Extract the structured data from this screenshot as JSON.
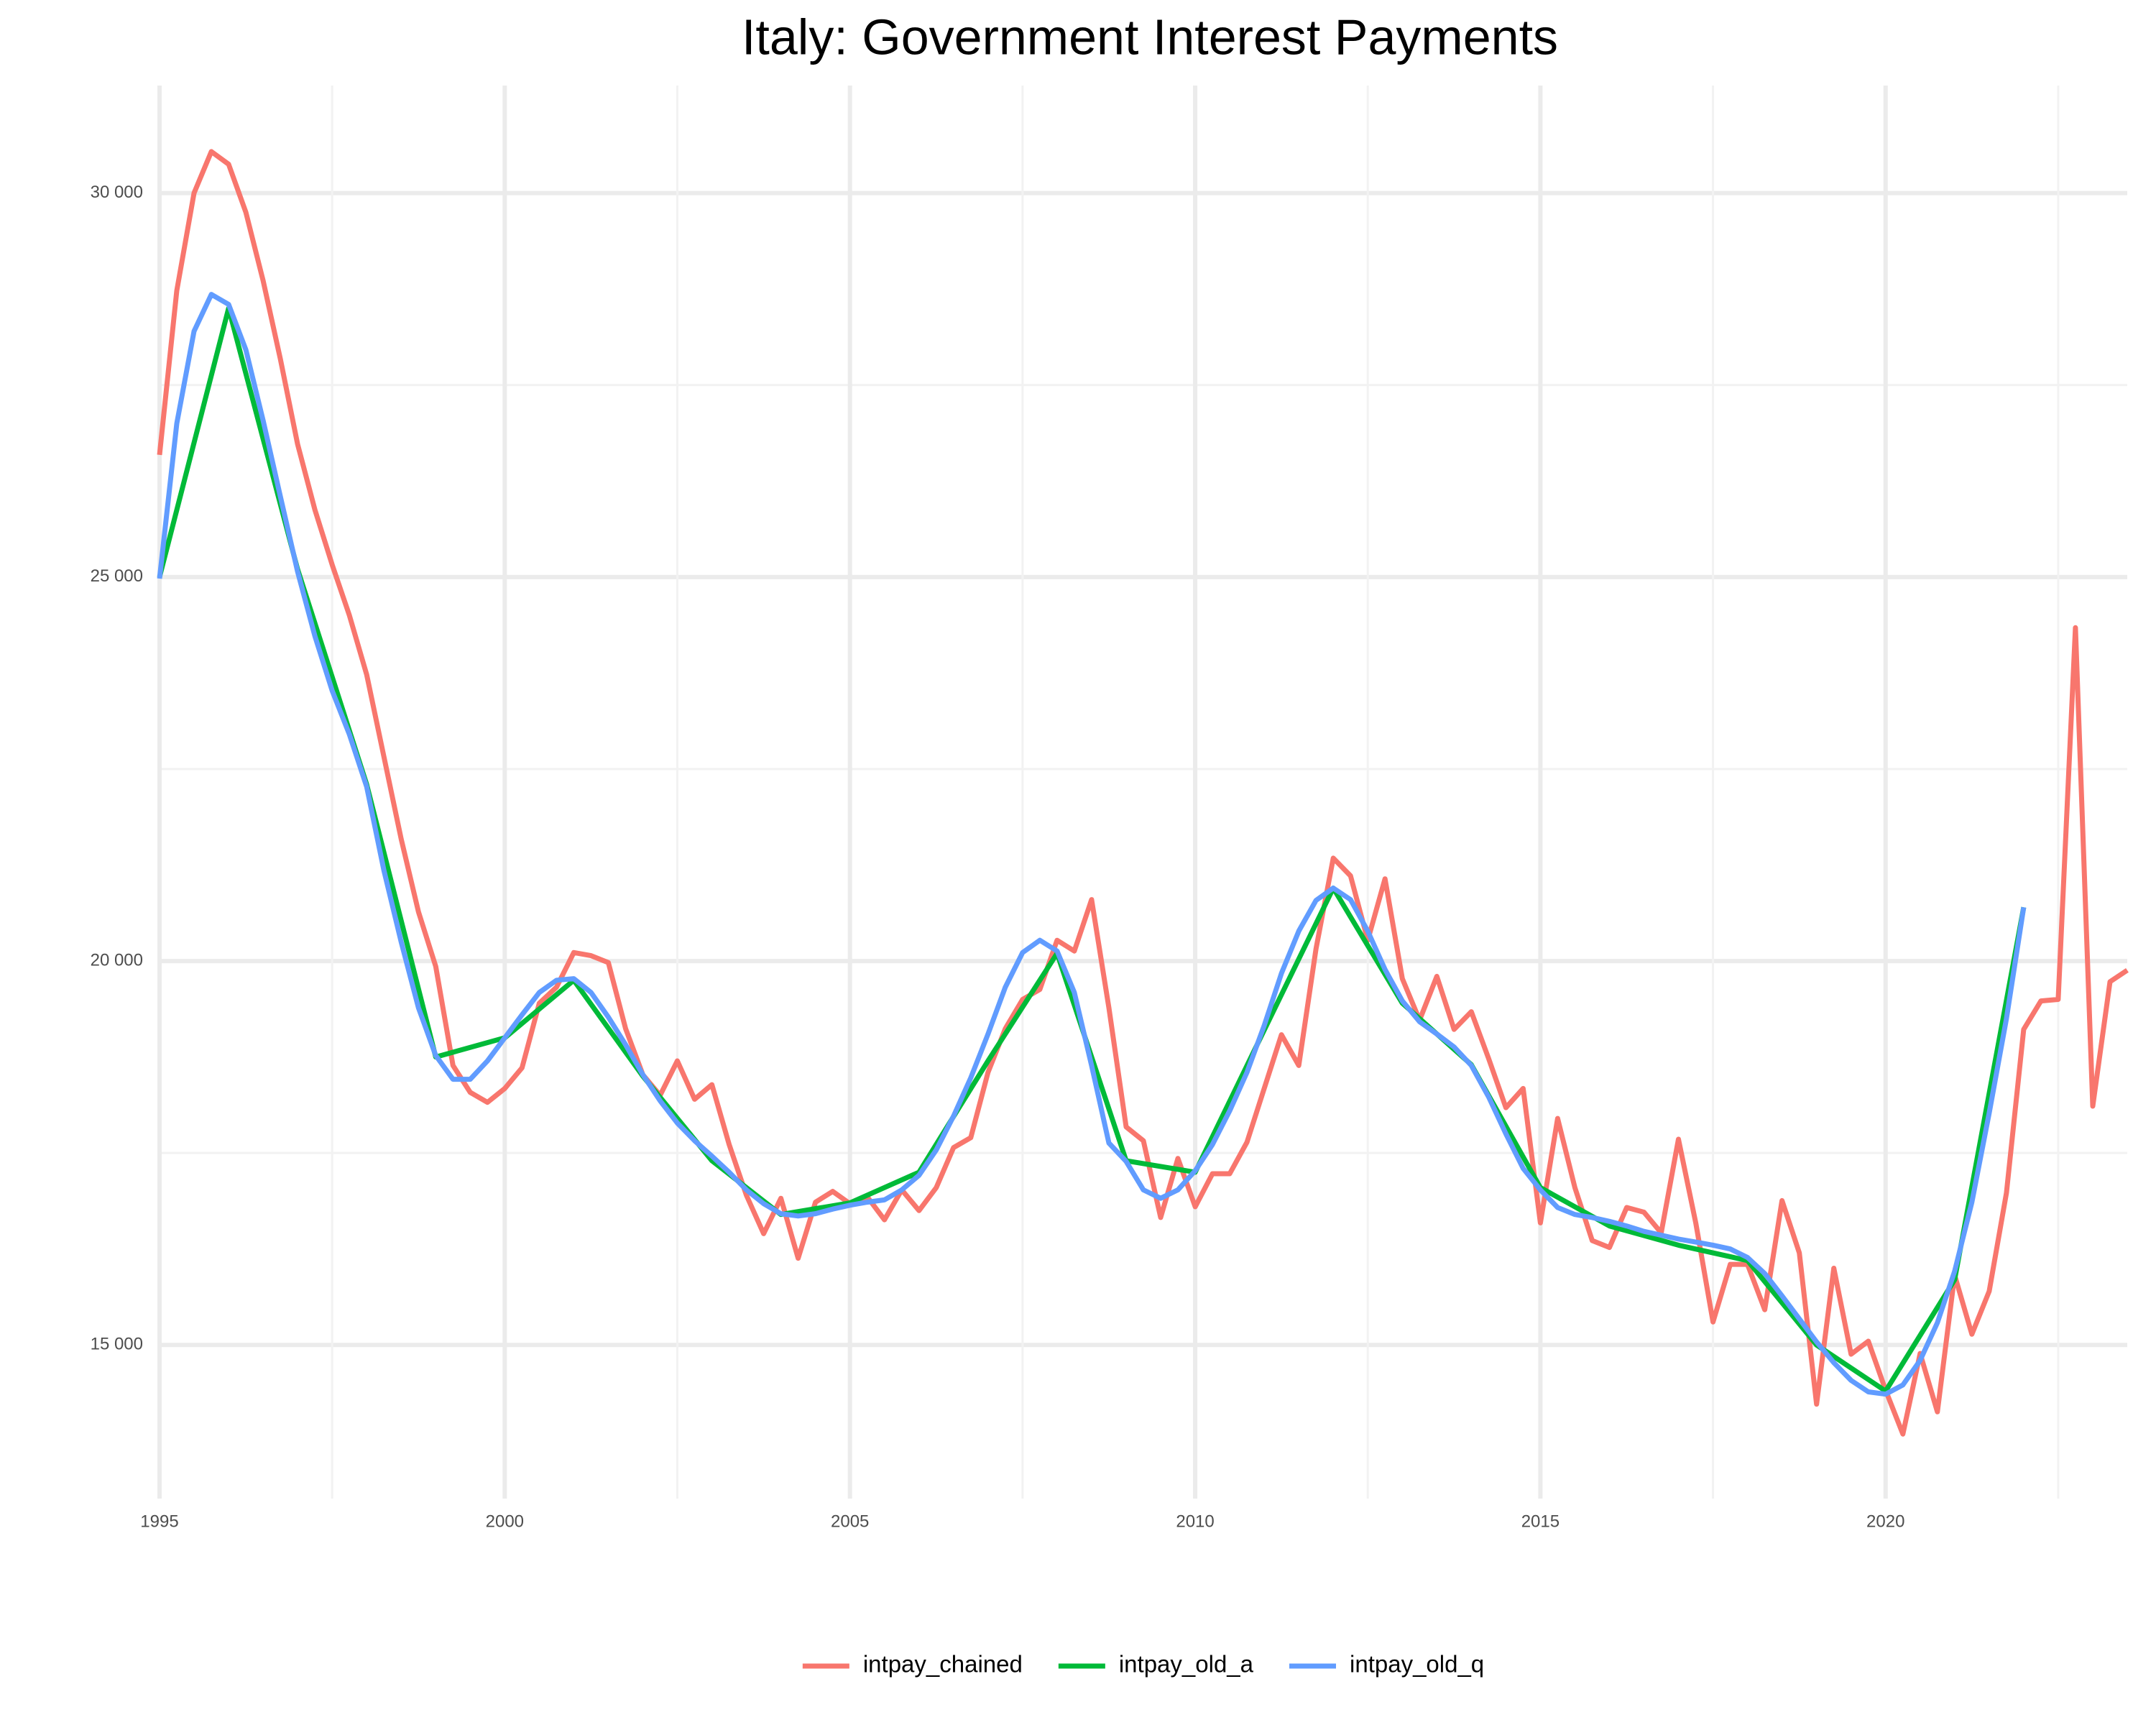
{
  "chart_data": {
    "type": "line",
    "title": "Italy: Government Interest Payments",
    "xlim": [
      1995,
      2023.5
    ],
    "xticks": [
      1995,
      2000,
      2005,
      2010,
      2015,
      2020
    ],
    "ylim": [
      13000,
      31400
    ],
    "yticks": [
      {
        "value": 15000,
        "label": "15 000"
      },
      {
        "value": 20000,
        "label": "20 000"
      },
      {
        "value": 25000,
        "label": "25 000"
      },
      {
        "value": 30000,
        "label": "30 000"
      }
    ],
    "grid": true,
    "legend": "bottom",
    "series": [
      {
        "name": "intpay_chained",
        "color": "#f8766d",
        "x": [
          1995,
          1995.25,
          1995.5,
          1995.75,
          1996,
          1996.25,
          1996.5,
          1996.75,
          1997,
          1997.25,
          1997.5,
          1997.75,
          1998,
          1998.25,
          1998.5,
          1998.75,
          1999,
          1999.25,
          1999.5,
          1999.75,
          2000,
          2000.25,
          2000.5,
          2000.75,
          2001,
          2001.25,
          2001.5,
          2001.75,
          2002,
          2002.25,
          2002.5,
          2002.75,
          2003,
          2003.25,
          2003.5,
          2003.75,
          2004,
          2004.25,
          2004.5,
          2004.75,
          2005,
          2005.25,
          2005.5,
          2005.75,
          2006,
          2006.25,
          2006.5,
          2006.75,
          2007,
          2007.25,
          2007.5,
          2007.75,
          2008,
          2008.25,
          2008.5,
          2008.75,
          2009,
          2009.25,
          2009.5,
          2009.75,
          2010,
          2010.25,
          2010.5,
          2010.75,
          2011,
          2011.25,
          2011.5,
          2011.75,
          2012,
          2012.25,
          2012.5,
          2012.75,
          2013,
          2013.25,
          2013.5,
          2013.75,
          2014,
          2014.25,
          2014.5,
          2014.75,
          2015,
          2015.25,
          2015.5,
          2015.75,
          2016,
          2016.25,
          2016.5,
          2016.75,
          2017,
          2017.25,
          2017.5,
          2017.75,
          2018,
          2018.25,
          2018.5,
          2018.75,
          2019,
          2019.25,
          2019.5,
          2019.75,
          2020,
          2020.25,
          2020.5,
          2020.75,
          2021,
          2021.25,
          2021.5,
          2021.75,
          2022,
          2022.25,
          2022.5,
          2022.75,
          2023,
          2023.25,
          2023.5
        ],
        "values": [
          26590,
          28730,
          30000,
          30540,
          30375,
          29750,
          28860,
          27840,
          26730,
          25875,
          25160,
          24500,
          23730,
          22660,
          21590,
          20640,
          19930,
          18640,
          18290,
          18160,
          18340,
          18610,
          19450,
          19660,
          20110,
          20070,
          19980,
          19120,
          18520,
          18250,
          18700,
          18200,
          18390,
          17610,
          16950,
          16450,
          16910,
          16130,
          16860,
          17000,
          16840,
          16930,
          16630,
          17020,
          16750,
          17050,
          17570,
          17700,
          18550,
          19120,
          19500,
          19630,
          20270,
          20130,
          20800,
          19390,
          17840,
          17660,
          16660,
          17430,
          16800,
          17230,
          17230,
          17640,
          18340,
          19040,
          18640,
          20160,
          21340,
          21110,
          20270,
          21070,
          19770,
          19230,
          19800,
          19110,
          19340,
          18730,
          18090,
          18340,
          16590,
          17950,
          17050,
          16360,
          16270,
          16790,
          16730,
          16460,
          17680,
          16590,
          15300,
          16050,
          16050,
          15460,
          16880,
          16200,
          14230,
          16000,
          14880,
          15050,
          14410,
          13840,
          14890,
          14130,
          15910,
          15140,
          15700,
          16980,
          19110,
          19480,
          19500,
          24340,
          18110,
          19730,
          19880
        ]
      },
      {
        "name": "intpay_old_a",
        "color": "#00ba38",
        "x": [
          1995,
          1996,
          1997,
          1998,
          1999,
          2000,
          2001,
          2002,
          2003,
          2004,
          2005,
          2006,
          2007,
          2008,
          2009,
          2010,
          2011,
          2012,
          2013,
          2014,
          2015,
          2016,
          2017,
          2018,
          2019,
          2020,
          2021,
          2022
        ],
        "values": [
          25000,
          28500,
          25100,
          22300,
          18750,
          19000,
          19750,
          18500,
          17400,
          16700,
          16850,
          17250,
          18700,
          20100,
          17400,
          17250,
          19100,
          20950,
          19450,
          18650,
          17050,
          16550,
          16300,
          16100,
          15000,
          14400,
          15850,
          20700
        ]
      },
      {
        "name": "intpay_old_q",
        "color": "#619cff",
        "x": [
          1995,
          1995.25,
          1995.5,
          1995.75,
          1996,
          1996.25,
          1996.5,
          1996.75,
          1997,
          1997.25,
          1997.5,
          1997.75,
          1998,
          1998.25,
          1998.5,
          1998.75,
          1999,
          1999.25,
          1999.5,
          1999.75,
          2000,
          2000.25,
          2000.5,
          2000.75,
          2001,
          2001.25,
          2001.5,
          2001.75,
          2002,
          2002.25,
          2002.5,
          2002.75,
          2003,
          2003.25,
          2003.5,
          2003.75,
          2004,
          2004.25,
          2004.5,
          2004.75,
          2005,
          2005.25,
          2005.5,
          2005.75,
          2006,
          2006.25,
          2006.5,
          2006.75,
          2007,
          2007.25,
          2007.5,
          2007.75,
          2008,
          2008.25,
          2008.5,
          2008.75,
          2009,
          2009.25,
          2009.5,
          2009.75,
          2010,
          2010.25,
          2010.5,
          2010.75,
          2011,
          2011.25,
          2011.5,
          2011.75,
          2012,
          2012.25,
          2012.5,
          2012.75,
          2013,
          2013.25,
          2013.5,
          2013.75,
          2014,
          2014.25,
          2014.5,
          2014.75,
          2015,
          2015.25,
          2015.5,
          2015.75,
          2016,
          2016.25,
          2016.5,
          2016.75,
          2017,
          2017.25,
          2017.5,
          2017.75,
          2018,
          2018.25,
          2018.5,
          2018.75,
          2019,
          2019.25,
          2019.5,
          2019.75,
          2020,
          2020.25,
          2020.5,
          2020.75,
          2021,
          2021.25,
          2021.5,
          2021.75,
          2022
        ],
        "values": [
          24980,
          27000,
          28200,
          28680,
          28550,
          27960,
          27040,
          26050,
          25070,
          24230,
          23520,
          22950,
          22270,
          21180,
          20250,
          19390,
          18770,
          18460,
          18460,
          18700,
          19000,
          19300,
          19590,
          19750,
          19770,
          19590,
          19270,
          18910,
          18520,
          18180,
          17890,
          17660,
          17460,
          17250,
          17020,
          16840,
          16710,
          16680,
          16710,
          16770,
          16820,
          16860,
          16890,
          17020,
          17210,
          17540,
          17980,
          18480,
          19050,
          19660,
          20110,
          20270,
          20130,
          19590,
          18640,
          17630,
          17390,
          17020,
          16910,
          17020,
          17270,
          17610,
          18050,
          18550,
          19160,
          19840,
          20390,
          20790,
          20950,
          20800,
          20390,
          19890,
          19480,
          19210,
          19050,
          18880,
          18640,
          18230,
          17750,
          17300,
          17020,
          16790,
          16700,
          16660,
          16610,
          16550,
          16480,
          16430,
          16380,
          16340,
          16300,
          16250,
          16140,
          15930,
          15640,
          15340,
          15040,
          14770,
          14540,
          14390,
          14360,
          14480,
          14800,
          15290,
          15960,
          16860,
          18020,
          19250,
          20700
        ]
      }
    ]
  }
}
